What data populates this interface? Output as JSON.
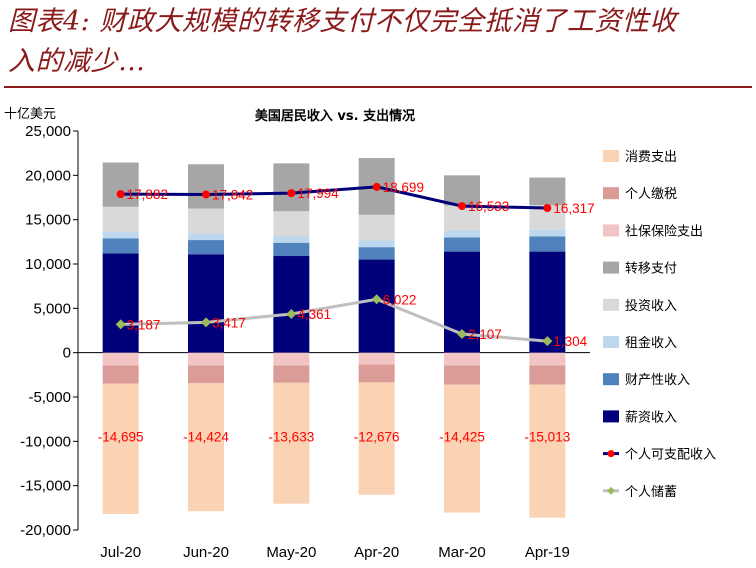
{
  "header": {
    "title_line1": "图表4: 财政大规模的转移支付不仅完全抵消了工资性收",
    "title_line2": "入的减少…"
  },
  "colors": {
    "title": "#8B1A1A",
    "consumption": "#FAD2B4",
    "income_tax": "#DB9B96",
    "social_insurance": "#F2C4C4",
    "transfers": "#A6A6A6",
    "investment_income": "#D9D9D9",
    "rental_income": "#BDD7EE",
    "property_income": "#4F81BD",
    "wage_income": "#00007A",
    "disposable_income": "#00007A",
    "disposable_marker": "#FF0000",
    "savings_line": "#BFBFBF",
    "savings_marker": "#9BBB59",
    "label_text": "#FF0000"
  },
  "chart_data": {
    "type": "bar",
    "stacked": true,
    "title": "美国居民收入 vs. 支出情况",
    "ylabel": "十亿美元",
    "xlabel": "",
    "ylim": [
      -20000,
      25000
    ],
    "ytick_step": 5000,
    "ytick_labels": [
      "-20,000",
      "-15,000",
      "-10,000",
      "-5,000",
      "0",
      "5,000",
      "10,000",
      "15,000",
      "20,000",
      "25,000"
    ],
    "categories": [
      "Jul-20",
      "Jun-20",
      "May-20",
      "Apr-20",
      "Mar-20",
      "Apr-19"
    ],
    "series": [
      {
        "name": "消费支出",
        "key": "consumption",
        "values": [
          -14695,
          -14424,
          -13633,
          -12676,
          -14425,
          -15013
        ]
      },
      {
        "name": "个人缴税",
        "key": "income_tax",
        "values": [
          -2050,
          -2000,
          -1950,
          -2000,
          -2150,
          -2150
        ]
      },
      {
        "name": "社保保险支出",
        "key": "social_insurance",
        "values": [
          -1450,
          -1450,
          -1450,
          -1350,
          -1450,
          -1450
        ]
      },
      {
        "name": "转移支付",
        "key": "transfers",
        "values": [
          5000,
          5000,
          5400,
          6400,
          3400,
          3100
        ]
      },
      {
        "name": "投资收入",
        "key": "investment_income",
        "values": [
          2800,
          2800,
          2800,
          2900,
          2800,
          2800
        ]
      },
      {
        "name": "租金收入",
        "key": "rental_income",
        "values": [
          750,
          750,
          750,
          750,
          800,
          750
        ]
      },
      {
        "name": "财产性收入",
        "key": "property_income",
        "values": [
          1700,
          1600,
          1500,
          1400,
          1600,
          1700
        ]
      },
      {
        "name": "薪资收入",
        "key": "wage_income",
        "values": [
          11200,
          11100,
          10900,
          10500,
          11400,
          11400
        ]
      }
    ],
    "lines": [
      {
        "name": "个人可支配收入",
        "key": "disposable_income",
        "values": [
          17882,
          17842,
          17994,
          18699,
          16533,
          16317
        ],
        "labels": [
          "17,882",
          "17,842",
          "17,994",
          "18,699",
          "16,533",
          "16,317"
        ]
      },
      {
        "name": "个人储蓄",
        "key": "savings",
        "values": [
          3187,
          3417,
          4361,
          6022,
          2107,
          1304
        ],
        "labels": [
          "3,187",
          "3,417",
          "4,361",
          "6,022",
          "2,107",
          "1,304"
        ]
      }
    ],
    "consumption_labels": [
      "-14,695",
      "-14,424",
      "-13,633",
      "-12,676",
      "-14,425",
      "-15,013"
    ],
    "legend_order": [
      "consumption",
      "income_tax",
      "social_insurance",
      "transfers",
      "investment_income",
      "rental_income",
      "property_income",
      "wage_income",
      "disposable_income",
      "savings"
    ],
    "legend_position": "right",
    "grid": false
  }
}
